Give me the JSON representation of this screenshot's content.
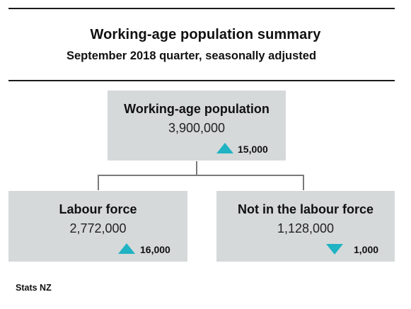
{
  "title": "Working-age population summary",
  "subtitle": "September 2018 quarter, seasonally adjusted",
  "nodes": {
    "working_age": {
      "label": "Working-age population",
      "value": "3,900,000",
      "change": "15,000",
      "direction": "up"
    },
    "labour_force": {
      "label": "Labour force",
      "value": "2,772,000",
      "change": "16,000",
      "direction": "up"
    },
    "not_in_labour_force": {
      "label": "Not in the labour force",
      "value": "1,128,000",
      "change": "1,000",
      "direction": "down"
    }
  },
  "colors": {
    "box": "#d6d9da",
    "arrow": "#1fb3c4"
  },
  "source": "Stats NZ"
}
